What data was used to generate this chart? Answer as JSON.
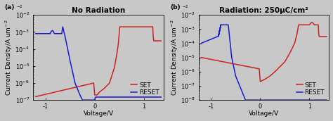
{
  "panel_a": {
    "title": "No Radiation",
    "label": "(a)",
    "ylim": [
      1e-07,
      0.01
    ],
    "xlim": [
      -1.25,
      1.4
    ],
    "xticks": [
      -1,
      0,
      1
    ],
    "ylabel": "Current Density/A um$^{-2}$",
    "xlabel": "Voltage/V"
  },
  "panel_b": {
    "title": "Radiation: 250μC/cm²",
    "label": "(b)",
    "ylim": [
      1e-08,
      0.01
    ],
    "xlim": [
      -1.25,
      1.4
    ],
    "xticks": [
      -1,
      0,
      1
    ],
    "ylabel": "Current Density/A um$^{-2}$",
    "xlabel": "Voltage/V"
  },
  "set_color": "#cc2222",
  "reset_color": "#1a1acc",
  "background_color": "#c8c8c8",
  "title_fontsize": 7.5,
  "label_fontsize": 6.5,
  "tick_fontsize": 6,
  "legend_fontsize": 6.5,
  "linewidth": 1.1
}
